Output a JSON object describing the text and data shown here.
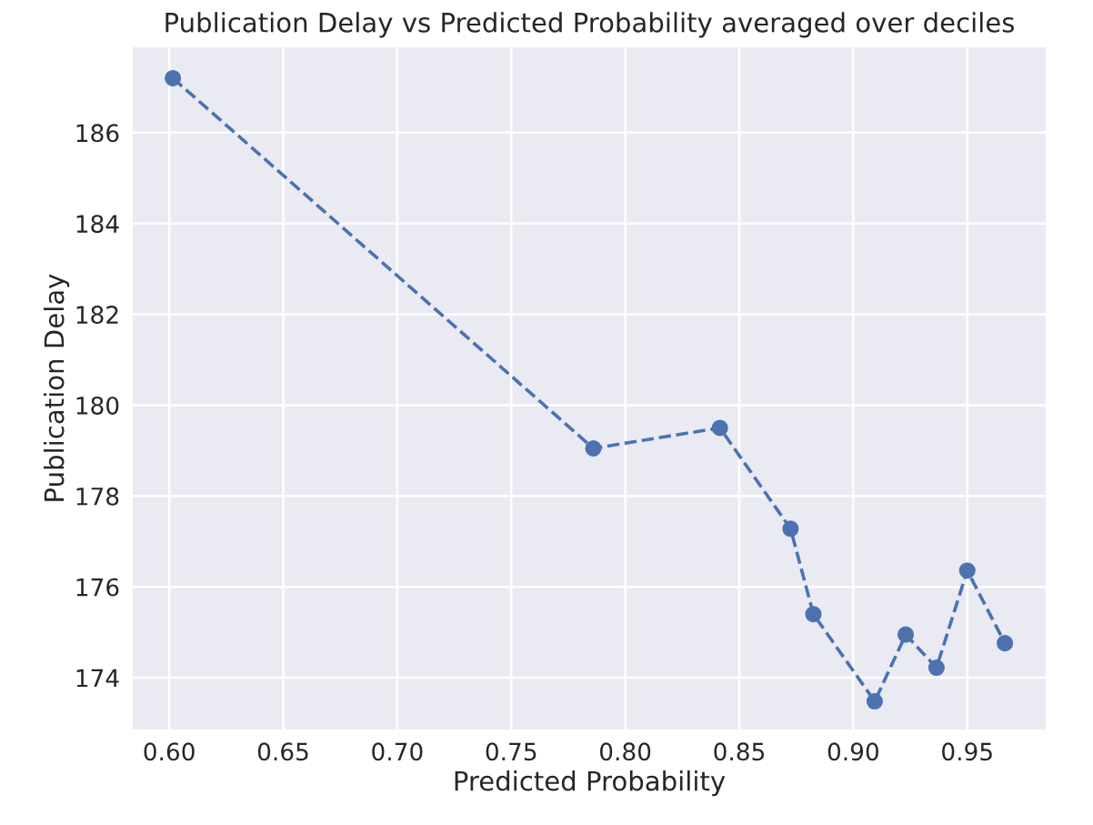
{
  "chart_data": {
    "type": "line",
    "title": "Publication Delay vs Predicted Probability averaged over deciles",
    "xlabel": "Predicted Probability",
    "ylabel": "Publication Delay",
    "x": [
      0.6016,
      0.786,
      0.8415,
      0.8725,
      0.8825,
      0.9094,
      0.923,
      0.9365,
      0.95,
      0.9665
    ],
    "series": [
      {
        "color": "#4c72b0",
        "values": [
          187.2,
          179.05,
          179.5,
          177.28,
          175.4,
          173.48,
          174.95,
          174.22,
          176.36,
          174.76
        ]
      }
    ],
    "xlim": [
      0.584,
      0.9844
    ],
    "ylim": [
      172.86,
      187.88
    ],
    "xticks": [
      {
        "value": 0.6,
        "label": "0.60"
      },
      {
        "value": 0.65,
        "label": "0.65"
      },
      {
        "value": 0.7,
        "label": "0.70"
      },
      {
        "value": 0.75,
        "label": "0.75"
      },
      {
        "value": 0.8,
        "label": "0.80"
      },
      {
        "value": 0.85,
        "label": "0.85"
      },
      {
        "value": 0.9,
        "label": "0.90"
      },
      {
        "value": 0.95,
        "label": "0.95"
      }
    ],
    "yticks": [
      174,
      176,
      178,
      180,
      182,
      184,
      186
    ],
    "grid": true,
    "marker": "circle",
    "line_style": "dashed"
  }
}
